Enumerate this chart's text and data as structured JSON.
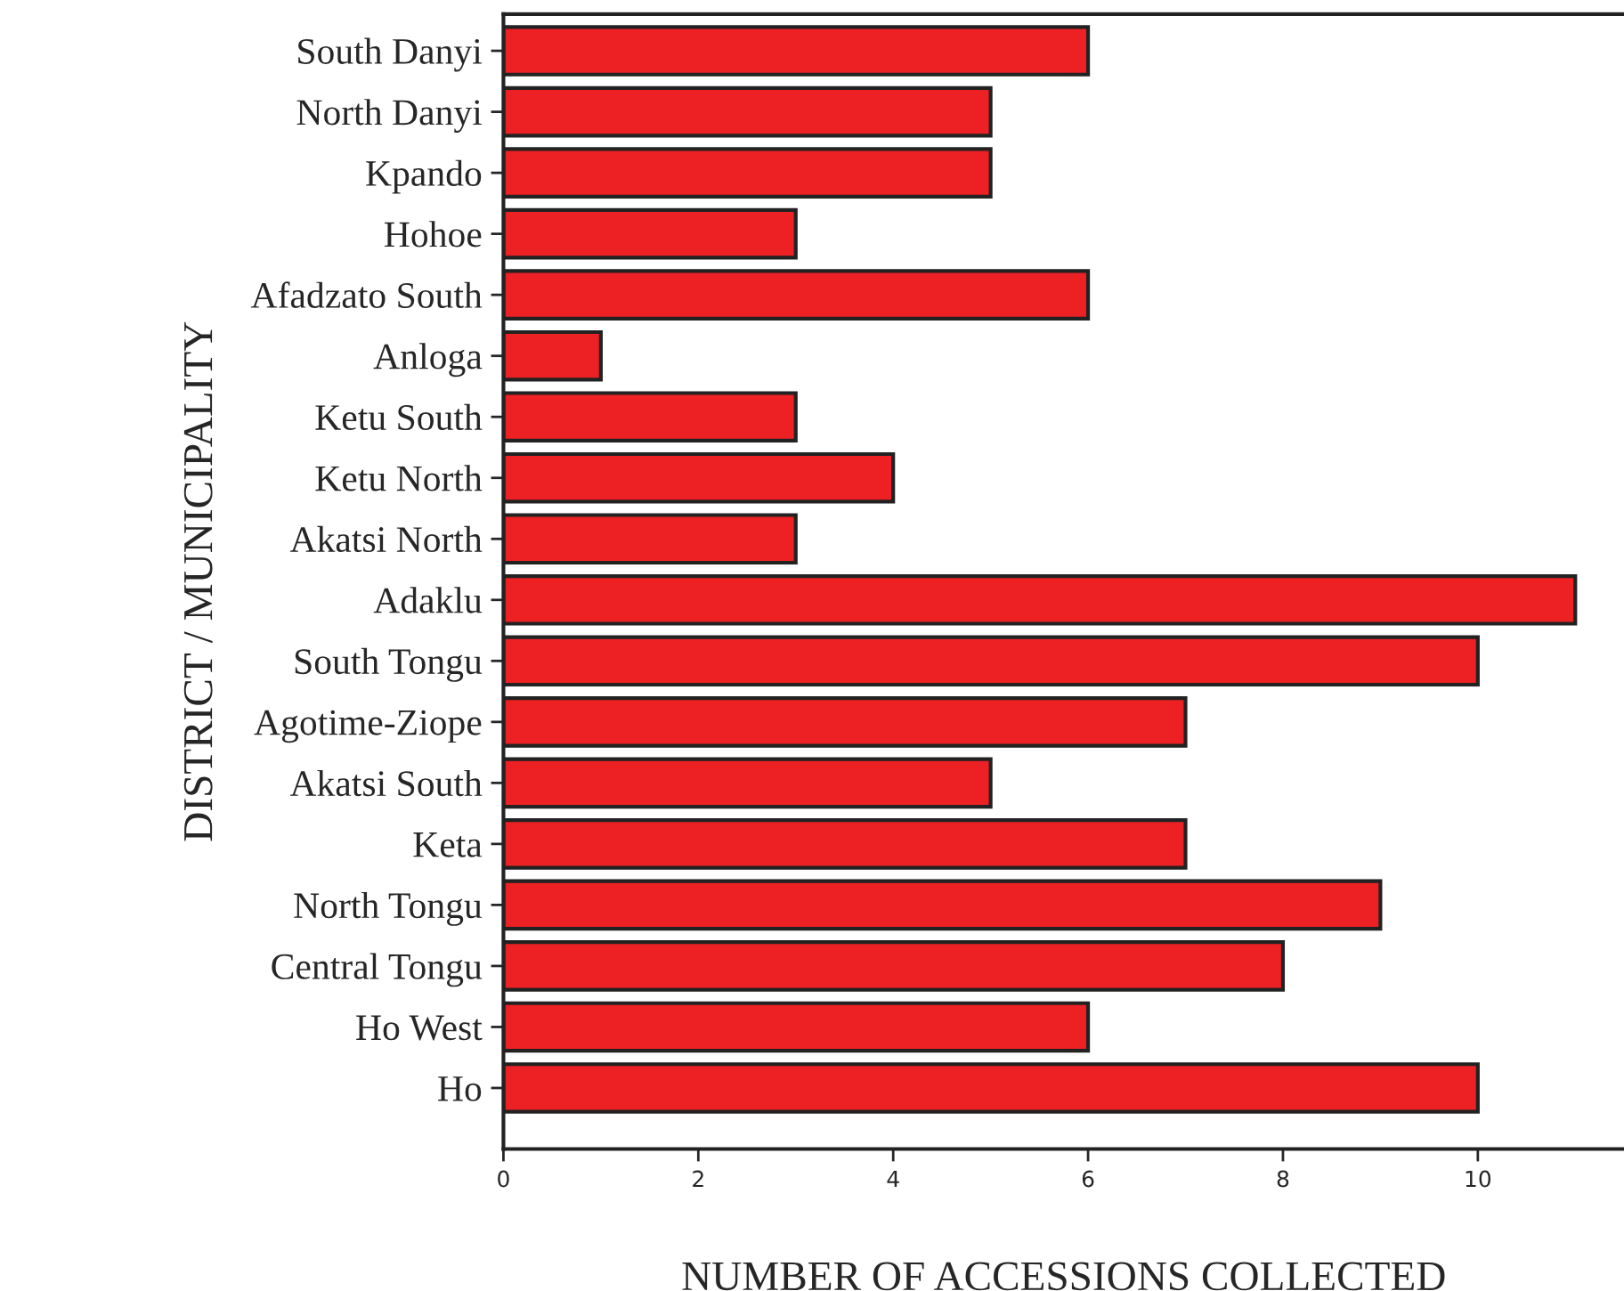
{
  "chart_data": {
    "type": "bar",
    "orientation": "horizontal",
    "xlabel": "NUMBER OF ACCESSIONS COLLECTED",
    "ylabel": "DISTRICT / MUNICIPALITY",
    "categories": [
      "South Danyi",
      "North Danyi",
      "Kpando",
      "Hohoe",
      "Afadzato South",
      "Anloga",
      "Ketu South",
      "Ketu North",
      "Akatsi North",
      "Adaklu",
      "South Tongu",
      "Agotime-Ziope",
      "Akatsi South",
      "Keta",
      "North Tongu",
      "Central Tongu",
      "Ho West",
      "Ho"
    ],
    "values": [
      6,
      5,
      5,
      3,
      6,
      1,
      3,
      4,
      3,
      11,
      10,
      7,
      5,
      7,
      9,
      8,
      6,
      10
    ],
    "color": "#ed2024",
    "xlim": [
      0,
      11.5
    ],
    "xticks": [
      0,
      2,
      4,
      6,
      8,
      10
    ],
    "grid": false,
    "legend": false
  }
}
